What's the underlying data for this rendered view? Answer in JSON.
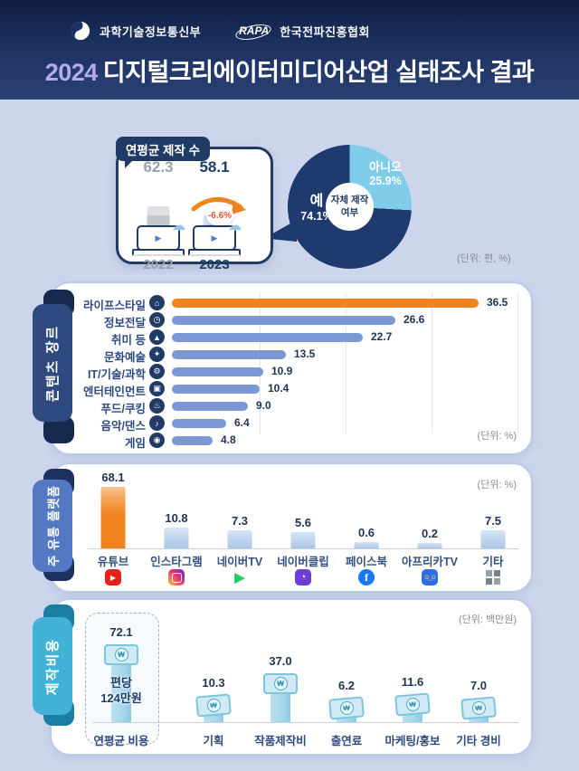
{
  "header": {
    "ministry": "과학기술정보통신부",
    "rapa_mark": "RAPA",
    "association": "한국전파진흥협회",
    "title_year": "2024",
    "title_rest": "디지털크리에이터미디어산업 실태조사 결과"
  },
  "colors": {
    "navy": "#203b66",
    "orange": "#f0831e",
    "genre_bar_blue": "#7b97d4",
    "donut_yes_navy": "#1e3a6e",
    "donut_no_lightblue": "#7fcde8",
    "cost_teal": "#41b3d7",
    "platform_tab_blue": "#5478c1",
    "background": "#ccd5ec"
  },
  "production": {
    "badge": "연평균 제작 수",
    "unit": "(단위: 편, %)",
    "change_label": "-6.6%",
    "years": [
      {
        "year": "2022",
        "value": "62.3"
      },
      {
        "year": "2023",
        "value": "58.1"
      }
    ]
  },
  "self_production": {
    "center_line1": "자체 제작",
    "center_line2": "여부",
    "yes_label": "예",
    "yes_value": "74.1%",
    "no_label": "아니오",
    "no_value": "25.9%",
    "yes_pct": 74.1,
    "no_pct": 25.9
  },
  "genre": {
    "tab": "콘텐츠 장르",
    "unit": "(단위: %)",
    "items": [
      {
        "label": "라이프스타일",
        "value": 36.5,
        "icon": "home-icon",
        "glyph": "⌂",
        "highlight": true
      },
      {
        "label": "정보전달",
        "value": 26.6,
        "icon": "clock-icon",
        "glyph": "◷",
        "highlight": false
      },
      {
        "label": "취미 등",
        "value": 22.7,
        "icon": "mountain-icon",
        "glyph": "▲",
        "highlight": false
      },
      {
        "label": "문화예술",
        "value": 13.5,
        "icon": "art-icon",
        "glyph": "✦",
        "highlight": false
      },
      {
        "label": "IT/기술/과학",
        "value": 10.9,
        "icon": "tech-icon",
        "glyph": "⚙",
        "highlight": false
      },
      {
        "label": "엔터테인먼트",
        "value": 10.4,
        "icon": "tv-icon",
        "glyph": "▣",
        "highlight": false
      },
      {
        "label": "푸드/쿠킹",
        "value": 9.0,
        "icon": "cooking-icon",
        "glyph": "♨",
        "highlight": false
      },
      {
        "label": "음악/댄스",
        "value": 6.4,
        "icon": "music-icon",
        "glyph": "♪",
        "highlight": false
      },
      {
        "label": "게임",
        "value": 4.8,
        "icon": "game-icon",
        "glyph": "◉",
        "highlight": false
      }
    ]
  },
  "platform": {
    "tab": "주 유통 플랫폼",
    "unit": "(단위: %)",
    "items": [
      {
        "label": "유튜브",
        "value": 68.1,
        "icon": "youtube-icon",
        "icon_class": "ic-youtube",
        "highlight": true
      },
      {
        "label": "인스타그램",
        "value": 10.8,
        "icon": "instagram-icon",
        "icon_class": "ic-instagram",
        "highlight": false
      },
      {
        "label": "네이버TV",
        "value": 7.3,
        "icon": "navertv-icon",
        "icon_class": "ic-navertv",
        "highlight": false
      },
      {
        "label": "네이버클립",
        "value": 5.6,
        "icon": "naverclip-icon",
        "icon_class": "ic-naverclip",
        "highlight": false
      },
      {
        "label": "페이스북",
        "value": 0.6,
        "icon": "facebook-icon",
        "icon_class": "ic-facebook",
        "highlight": false
      },
      {
        "label": "아프리카TV",
        "value": 0.2,
        "icon": "afreecatv-icon",
        "icon_class": "ic-afreecatv",
        "highlight": false
      },
      {
        "label": "기타",
        "value": 7.5,
        "icon": "etc-grid-icon",
        "icon_class": "ic-etc",
        "highlight": false
      }
    ]
  },
  "cost": {
    "tab": "제작비용",
    "unit": "(단위: 백만원)",
    "per_episode_line1": "편당",
    "per_episode_line2": "124만원",
    "won_symbol": "₩",
    "items": [
      {
        "label": "연평균 비용",
        "value": 72.1,
        "boxed": true
      },
      {
        "label": "기획",
        "value": 10.3,
        "boxed": false
      },
      {
        "label": "작품제작비",
        "value": 37.0,
        "boxed": false
      },
      {
        "label": "출연료",
        "value": 6.2,
        "boxed": false
      },
      {
        "label": "마케팅/홍보",
        "value": 11.6,
        "boxed": false
      },
      {
        "label": "기타 경비",
        "value": 7.0,
        "boxed": false
      }
    ]
  },
  "chart_data": [
    {
      "type": "bar",
      "title": "연평균 제작 수",
      "categories": [
        "2022",
        "2023"
      ],
      "values": [
        62.3,
        58.1
      ],
      "annotations": [
        "-6.6%"
      ],
      "unit": "편",
      "ylabel": "",
      "xlabel": ""
    },
    {
      "type": "pie",
      "title": "자체 제작 여부",
      "labels": [
        "예",
        "아니오"
      ],
      "values": [
        74.1,
        25.9
      ],
      "unit": "%",
      "colors": [
        "#1e3a6e",
        "#7fcde8"
      ]
    },
    {
      "type": "bar",
      "orientation": "horizontal",
      "title": "콘텐츠 장르",
      "categories": [
        "라이프스타일",
        "정보전달",
        "취미 등",
        "문화예술",
        "IT/기술/과학",
        "엔터테인먼트",
        "푸드/쿠킹",
        "음악/댄스",
        "게임"
      ],
      "values": [
        36.5,
        26.6,
        22.7,
        13.5,
        10.9,
        10.4,
        9.0,
        6.4,
        4.8
      ],
      "unit": "%",
      "xlim": [
        0,
        40
      ],
      "grid": true,
      "highlight_category": "라이프스타일"
    },
    {
      "type": "bar",
      "title": "주 유통 플랫폼",
      "categories": [
        "유튜브",
        "인스타그램",
        "네이버TV",
        "네이버클립",
        "페이스북",
        "아프리카TV",
        "기타"
      ],
      "values": [
        68.1,
        10.8,
        7.3,
        5.6,
        0.6,
        0.2,
        7.5
      ],
      "unit": "%",
      "ylim": [
        0,
        80
      ],
      "highlight_category": "유튜브"
    },
    {
      "type": "bar",
      "title": "제작비용",
      "categories": [
        "연평균 비용",
        "기획",
        "작품제작비",
        "출연료",
        "마케팅/홍보",
        "기타 경비"
      ],
      "values": [
        72.1,
        10.3,
        37.0,
        6.2,
        11.6,
        7.0
      ],
      "unit": "백만원",
      "annotations": [
        "편당 124만원"
      ]
    }
  ]
}
